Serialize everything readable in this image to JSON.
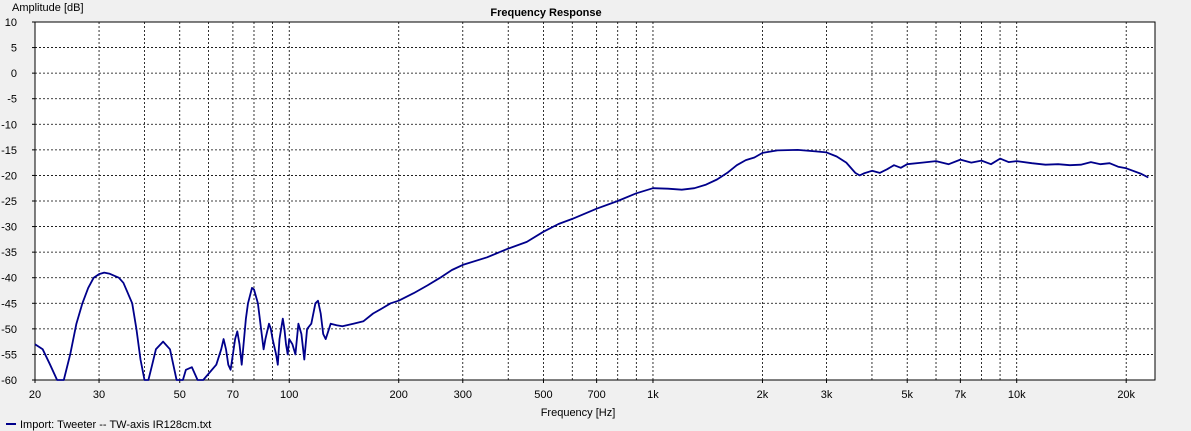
{
  "chart_data": {
    "type": "line",
    "title": "Frequency Response",
    "xlabel": "Frequency [Hz]",
    "ylabel": "Amplitude [dB]",
    "x_scale": "log",
    "xlim": [
      20,
      24000
    ],
    "ylim": [
      -60,
      10
    ],
    "grid": true,
    "x_tick_labels": [
      {
        "value": 20,
        "label": "20"
      },
      {
        "value": 30,
        "label": "30"
      },
      {
        "value": 50,
        "label": "50"
      },
      {
        "value": 70,
        "label": "70"
      },
      {
        "value": 100,
        "label": "100"
      },
      {
        "value": 200,
        "label": "200"
      },
      {
        "value": 300,
        "label": "300"
      },
      {
        "value": 500,
        "label": "500"
      },
      {
        "value": 700,
        "label": "700"
      },
      {
        "value": 1000,
        "label": "1k"
      },
      {
        "value": 2000,
        "label": "2k"
      },
      {
        "value": 3000,
        "label": "3k"
      },
      {
        "value": 5000,
        "label": "5k"
      },
      {
        "value": 7000,
        "label": "7k"
      },
      {
        "value": 10000,
        "label": "10k"
      },
      {
        "value": 20000,
        "label": "20k"
      }
    ],
    "y_ticks": [
      10,
      5,
      0,
      -5,
      -10,
      -15,
      -20,
      -25,
      -30,
      -35,
      -40,
      -45,
      -50,
      -55,
      -60
    ],
    "legend_position": "bottom-left",
    "series": [
      {
        "name": "Import: Tweeter -- TW-axis IR128cm.txt",
        "color": "#00008b",
        "points": [
          [
            20,
            -53
          ],
          [
            21,
            -54
          ],
          [
            22,
            -57
          ],
          [
            23,
            -60
          ],
          [
            24,
            -60
          ],
          [
            25,
            -55
          ],
          [
            26,
            -49
          ],
          [
            27,
            -45
          ],
          [
            28,
            -42
          ],
          [
            29,
            -40
          ],
          [
            30,
            -39.3
          ],
          [
            31,
            -39
          ],
          [
            32,
            -39.2
          ],
          [
            34,
            -40
          ],
          [
            35,
            -41
          ],
          [
            37,
            -45
          ],
          [
            38,
            -50
          ],
          [
            39,
            -56
          ],
          [
            40,
            -60
          ],
          [
            41,
            -60
          ],
          [
            42,
            -57
          ],
          [
            43,
            -54
          ],
          [
            45,
            -52.5
          ],
          [
            47,
            -54
          ],
          [
            48,
            -57
          ],
          [
            49,
            -60
          ],
          [
            51,
            -60
          ],
          [
            52,
            -58
          ],
          [
            54,
            -57.5
          ],
          [
            56,
            -60
          ],
          [
            58,
            -60
          ],
          [
            63,
            -57
          ],
          [
            65,
            -54
          ],
          [
            66,
            -52
          ],
          [
            67,
            -54
          ],
          [
            68,
            -57
          ],
          [
            69,
            -58
          ],
          [
            70,
            -55
          ],
          [
            71,
            -52
          ],
          [
            72,
            -50.5
          ],
          [
            73,
            -53
          ],
          [
            74,
            -57
          ],
          [
            76,
            -48
          ],
          [
            77,
            -45
          ],
          [
            79,
            -42
          ],
          [
            80,
            -42.3
          ],
          [
            82,
            -45
          ],
          [
            83,
            -48
          ],
          [
            84,
            -51
          ],
          [
            85,
            -54
          ],
          [
            86,
            -52
          ],
          [
            88,
            -49
          ],
          [
            89,
            -50
          ],
          [
            90,
            -52
          ],
          [
            92,
            -55
          ],
          [
            93,
            -57
          ],
          [
            94,
            -52
          ],
          [
            96,
            -48
          ],
          [
            97,
            -50
          ],
          [
            98,
            -53
          ],
          [
            99,
            -55
          ],
          [
            100,
            -52
          ],
          [
            102,
            -53
          ],
          [
            104,
            -55
          ],
          [
            106,
            -49
          ],
          [
            108,
            -51
          ],
          [
            110,
            -56
          ],
          [
            112,
            -50
          ],
          [
            115,
            -49
          ],
          [
            118,
            -45
          ],
          [
            120,
            -44.5
          ],
          [
            122,
            -47
          ],
          [
            124,
            -51
          ],
          [
            126,
            -52
          ],
          [
            130,
            -49
          ],
          [
            135,
            -49.3
          ],
          [
            140,
            -49.5
          ],
          [
            150,
            -49
          ],
          [
            160,
            -48.5
          ],
          [
            170,
            -47
          ],
          [
            180,
            -46
          ],
          [
            190,
            -45
          ],
          [
            200,
            -44.5
          ],
          [
            220,
            -43
          ],
          [
            240,
            -41.5
          ],
          [
            260,
            -40
          ],
          [
            280,
            -38.5
          ],
          [
            300,
            -37.5
          ],
          [
            350,
            -36
          ],
          [
            400,
            -34.3
          ],
          [
            450,
            -33
          ],
          [
            500,
            -31
          ],
          [
            550,
            -29.5
          ],
          [
            600,
            -28.5
          ],
          [
            700,
            -26.5
          ],
          [
            800,
            -25
          ],
          [
            900,
            -23.5
          ],
          [
            1000,
            -22.5
          ],
          [
            1100,
            -22.6
          ],
          [
            1200,
            -22.8
          ],
          [
            1300,
            -22.5
          ],
          [
            1400,
            -21.8
          ],
          [
            1500,
            -20.8
          ],
          [
            1600,
            -19.5
          ],
          [
            1700,
            -18
          ],
          [
            1800,
            -17
          ],
          [
            1900,
            -16.5
          ],
          [
            2000,
            -15.6
          ],
          [
            2200,
            -15.1
          ],
          [
            2500,
            -15
          ],
          [
            2800,
            -15.3
          ],
          [
            3000,
            -15.5
          ],
          [
            3200,
            -16.3
          ],
          [
            3400,
            -17.5
          ],
          [
            3600,
            -19.5
          ],
          [
            3700,
            -20
          ],
          [
            3800,
            -19.6
          ],
          [
            4000,
            -19.1
          ],
          [
            4200,
            -19.5
          ],
          [
            4400,
            -18.8
          ],
          [
            4600,
            -18
          ],
          [
            4800,
            -18.5
          ],
          [
            5000,
            -17.8
          ],
          [
            5500,
            -17.5
          ],
          [
            6000,
            -17.2
          ],
          [
            6500,
            -17.8
          ],
          [
            7000,
            -16.9
          ],
          [
            7500,
            -17.5
          ],
          [
            8000,
            -17.1
          ],
          [
            8500,
            -17.8
          ],
          [
            9000,
            -16.7
          ],
          [
            9500,
            -17.4
          ],
          [
            10000,
            -17.2
          ],
          [
            11000,
            -17.6
          ],
          [
            12000,
            -17.9
          ],
          [
            13000,
            -17.8
          ],
          [
            14000,
            -18
          ],
          [
            15000,
            -17.9
          ],
          [
            16000,
            -17.4
          ],
          [
            17000,
            -17.8
          ],
          [
            18000,
            -17.6
          ],
          [
            19000,
            -18.3
          ],
          [
            20000,
            -18.6
          ],
          [
            22000,
            -19.7
          ],
          [
            23000,
            -20.4
          ]
        ]
      }
    ]
  }
}
